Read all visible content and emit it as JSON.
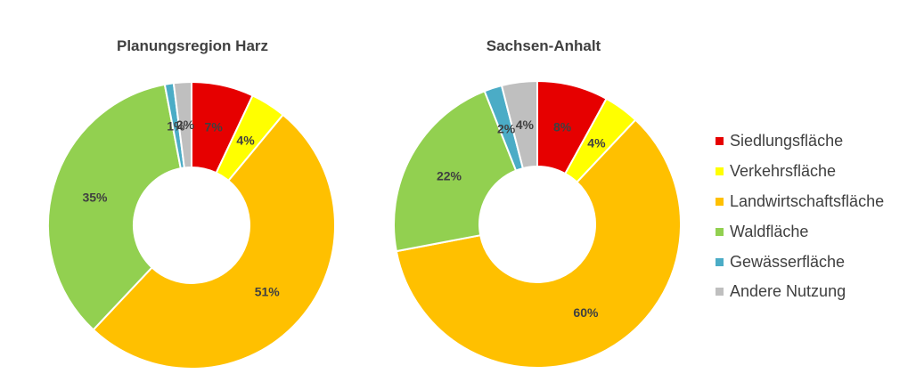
{
  "chart_data": [
    {
      "type": "pie",
      "title": "Planungsregion Harz",
      "categories": [
        "Siedlungsfläche",
        "Verkehrsfläche",
        "Landwirtschaftsfläche",
        "Waldfläche",
        "Gewässerfläche",
        "Andere Nutzung"
      ],
      "values": [
        7,
        4,
        51,
        35,
        1,
        2
      ],
      "value_labels": [
        "7%",
        "4%",
        "51%",
        "35%",
        "1%",
        "2%"
      ]
    },
    {
      "type": "pie",
      "title": "Sachsen-Anhalt",
      "categories": [
        "Siedlungsfläche",
        "Verkehrsfläche",
        "Landwirtschaftsfläche",
        "Waldfläche",
        "Gewässerfläche",
        "Andere Nutzung"
      ],
      "values": [
        8,
        4,
        60,
        22,
        2,
        4
      ],
      "value_labels": [
        "8%",
        "4%",
        "60%",
        "22%",
        "2%",
        "4%"
      ]
    }
  ],
  "legend": {
    "position": "right",
    "items": [
      {
        "label": "Siedlungsfläche",
        "color": "#E60000"
      },
      {
        "label": "Verkehrsfläche",
        "color": "#FFFF00"
      },
      {
        "label": "Landwirtschaftsfläche",
        "color": "#FFC000"
      },
      {
        "label": "Waldfläche",
        "color": "#92D050"
      },
      {
        "label": "Gewässerfläche",
        "color": "#4BACC6"
      },
      {
        "label": "Andere Nutzung",
        "color": "#BFBFBF"
      }
    ]
  }
}
